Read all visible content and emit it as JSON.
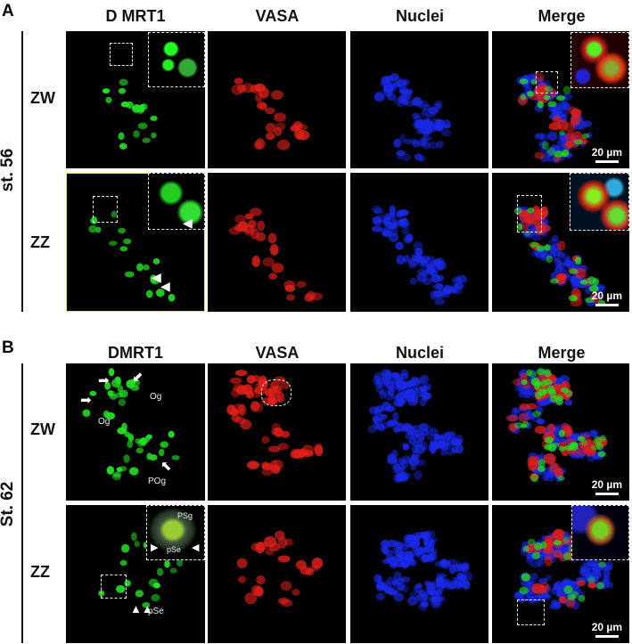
{
  "panels": [
    {
      "label": "A",
      "stage": "st. 56",
      "headers": [
        "D MRT1",
        "VASA",
        "Nuclei",
        "Merge"
      ],
      "rows": [
        "ZW",
        "ZZ"
      ],
      "scale_bar": "20 µm",
      "annotations": {
        "arrowheads": "white arrowheads (ZZ DMRT1)"
      }
    },
    {
      "label": "B",
      "stage": "St. 62",
      "headers": [
        "DMRT1",
        "VASA",
        "Nuclei",
        "Merge"
      ],
      "rows": [
        "ZW",
        "ZZ"
      ],
      "scale_bar": "20 µm",
      "annotations": {
        "og1": "Og",
        "og2": "Og",
        "pog": "POg",
        "psg": "PSg",
        "pse_inset": "pSe",
        "pse": "pSe"
      }
    }
  ],
  "colors": {
    "dmrt1": "#22e022",
    "vasa": "#e0201a",
    "nuclei": "#1a2ae8",
    "highlight_border": "#e8e070"
  }
}
